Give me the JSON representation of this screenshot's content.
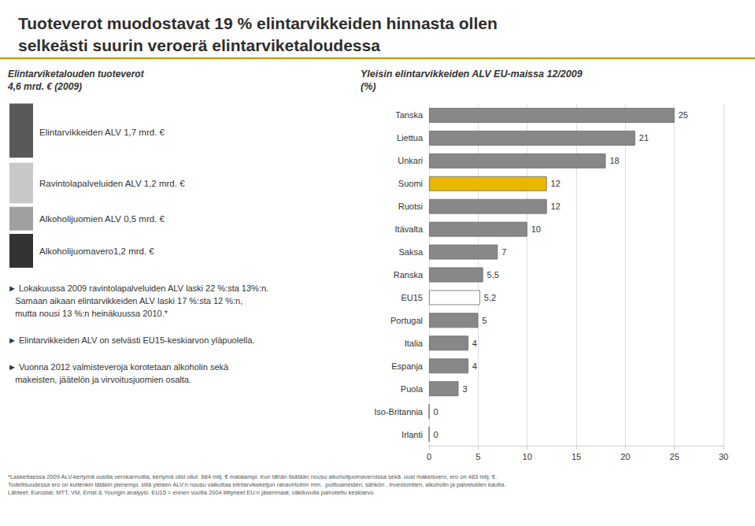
{
  "chart_data": {
    "type": "bar",
    "orientation": "horizontal",
    "title": "Tuoteverot muodostavat 19 % elintarvikkeiden hinnasta ollen\nselkeästi suurin veroerä elintarviketaloudessa",
    "subtitle": "Yleisin elintarvikkeiden ALV EU-maissa 12/2009\n(%)",
    "annotations": [
      {
        "text": "Elintarviketalouden tuoteverot\n4,6 mrd. € (2009)"
      },
      {
        "text": "Elintarvikkeiden ALV 1,7 mrd. €",
        "color": "#595959"
      },
      {
        "text": "Ravintolapalveluiden ALV 1,2 mrd. €",
        "color": "#c8c8c8"
      },
      {
        "text": "Alkoholijuomien ALV 0,5 mrd. €",
        "color": "#a0a0a0"
      },
      {
        "text": "Alkoholijuomavero1,2 mrd. €",
        "color": "#333333"
      },
      {
        "text": "► Lokakuussa 2009 ravintolapalveluiden ALV laski 22 %:sta 13%:n.\n   Samaan aikaan elintarvikkeiden ALV laski 17 %:sta 12 %:n,\n   mutta nousi 13 %:n heinäkuussa 2010.*"
      },
      {
        "text": "► Elintarvikkeiden ALV on selvästi EU15-keskiarvon yläpuolella."
      },
      {
        "text": "► Vuonna 2012 valmisteveroja korotetaan alkoholin sekä\n   makeisten, jäätelön ja virvoitusjuomien osalta."
      },
      {
        "text": "*Laskettaessa 2009 ALV-kertymä uusilla verokannoilla, kertymä olisi ollut  684 milj. € matalampi. Kun tähän lisätään nousu alkoholijuomaveroissa sekä  uusi makeisvero, ero on 483 milj. €.\nTodellisuudessa ero on kuitenkin tätäkin pienempi, sillä yleisen ALV:n nousu vaikuttaa elintarvikeketjun rahavirtoihin mm.  polttoaineiden, sähkön , investointien, alkoholin ja palveluiden kautta.\nLähteet: Eurostat, MTT, VM, Ernst & Youngin analyysi. EU15 = ennen vuotta 2004 liittyneet EU:n jäsenmaat, väkiluvulla painotettu keskiarvo."
      }
    ],
    "categories": [
      "Tanska",
      "Liettua",
      "Unkari",
      "Suomi",
      "Ruotsi",
      "Itävalta",
      "Saksa",
      "Ranska",
      "EU15",
      "Portugal",
      "Italia",
      "Espanja",
      "Puola",
      "Iso-Britannia",
      "Irlanti"
    ],
    "values": [
      25,
      21,
      18,
      12,
      12,
      10,
      7,
      5.5,
      5.2,
      5,
      4,
      4,
      3,
      0,
      0
    ],
    "value_labels": [
      "25",
      "21",
      "18",
      "12",
      "12",
      "10",
      "7",
      "5,5",
      "5,2",
      "5",
      "4",
      "4",
      "3",
      "0",
      "0"
    ],
    "colors": [
      "#888888",
      "#888888",
      "#888888",
      "#e8b800",
      "#888888",
      "#888888",
      "#888888",
      "#888888",
      "#ffffff",
      "#888888",
      "#888888",
      "#888888",
      "#888888",
      "#888888",
      "#888888"
    ],
    "xlim": [
      0,
      30
    ],
    "xticks": [
      0,
      5,
      10,
      15,
      20,
      25,
      30
    ],
    "grid": true,
    "data_labels": true
  }
}
